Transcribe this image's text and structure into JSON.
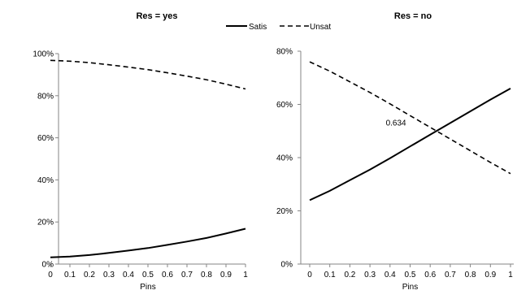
{
  "legend": {
    "position": "top-center",
    "items": [
      {
        "name": "Satis",
        "style": "solid",
        "color": "#000000"
      },
      {
        "name": "Unsat",
        "style": "dashed",
        "color": "#000000"
      }
    ]
  },
  "chart_data": [
    {
      "type": "line",
      "title": "Res = yes",
      "xlabel": "Pins",
      "ylabel": "",
      "x": [
        0,
        0.1,
        0.2,
        0.3,
        0.4,
        0.5,
        0.6,
        0.7,
        0.8,
        0.9,
        1
      ],
      "x_tick_labels": [
        "0",
        "0.1",
        "0.2",
        "0.3",
        "0.4",
        "0.5",
        "0.6",
        "0.7",
        "0.8",
        "0.9",
        "1"
      ],
      "ylim": [
        0,
        100
      ],
      "y_ticks": [
        0,
        20,
        40,
        60,
        80,
        100
      ],
      "y_tick_labels": [
        "0%",
        "20%",
        "40%",
        "60%",
        "80%",
        "100%"
      ],
      "grid": false,
      "series": [
        {
          "name": "Satis",
          "values": [
            3.2,
            3.6,
            4.3,
            5.3,
            6.4,
            7.6,
            9.1,
            10.7,
            12.4,
            14.5,
            16.8
          ]
        },
        {
          "name": "Unsat",
          "values": [
            96.8,
            96.4,
            95.7,
            94.7,
            93.6,
            92.4,
            90.9,
            89.3,
            87.6,
            85.5,
            83.2
          ]
        }
      ]
    },
    {
      "type": "line",
      "title": "Res = no",
      "xlabel": "Pins",
      "ylabel": "",
      "x": [
        0,
        0.1,
        0.2,
        0.3,
        0.4,
        0.5,
        0.6,
        0.7,
        0.8,
        0.9,
        1
      ],
      "x_tick_labels": [
        "0",
        "0.1",
        "0.2",
        "0.3",
        "0.4",
        "0.5",
        "0.6",
        "0.7",
        "0.8",
        "0.9",
        "1"
      ],
      "ylim": [
        0,
        80
      ],
      "y_ticks": [
        0,
        20,
        40,
        60,
        80
      ],
      "y_tick_labels": [
        "0%",
        "20%",
        "40%",
        "60%",
        "80%"
      ],
      "grid": false,
      "annotation": {
        "text": "0.634",
        "x": 0.634
      },
      "series": [
        {
          "name": "Satis",
          "values": [
            24,
            27.5,
            31.5,
            35.5,
            39.8,
            44.2,
            48.6,
            53,
            57.4,
            61.8,
            66
          ]
        },
        {
          "name": "Unsat",
          "values": [
            76,
            72.5,
            68.5,
            64.5,
            60.2,
            55.8,
            51.4,
            47,
            42.6,
            38.2,
            34
          ]
        }
      ]
    }
  ]
}
